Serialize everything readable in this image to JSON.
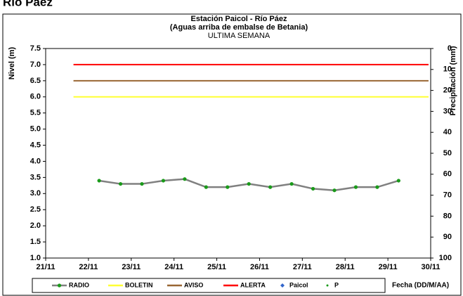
{
  "page_title": "Río Páez",
  "chart_data": {
    "type": "line",
    "title": "Estación Paicol - Río Páez",
    "subtitle": "(Aguas arriba de embalse de Betania)",
    "period": "ULTIMA SEMANA",
    "y_label": "Nivel (m)",
    "y2_label": "Precipitación (mm)",
    "x_label": "Fecha (DD/M/AA)",
    "xlim": [
      21,
      30
    ],
    "xticks": [
      {
        "value": 21,
        "label": "21/11"
      },
      {
        "value": 22,
        "label": "22/11"
      },
      {
        "value": 23,
        "label": "23/11"
      },
      {
        "value": 24,
        "label": "24/11"
      },
      {
        "value": 25,
        "label": "25/11"
      },
      {
        "value": 26,
        "label": "26/11"
      },
      {
        "value": 27,
        "label": "27/11"
      },
      {
        "value": 28,
        "label": "28/11"
      },
      {
        "value": 29,
        "label": "29/11"
      },
      {
        "value": 30,
        "label": "30/11"
      }
    ],
    "ylim": [
      1,
      7.5
    ],
    "yticks": [
      {
        "value": 1,
        "label": "1.0"
      },
      1.5,
      {
        "value": 2,
        "label": "2.0"
      },
      2.5,
      {
        "value": 3,
        "label": "3.0"
      },
      3.5,
      {
        "value": 4,
        "label": "4.0"
      },
      4.5,
      {
        "value": 5,
        "label": "5.0"
      },
      5.5,
      {
        "value": 6,
        "label": "6.0"
      },
      6.5,
      {
        "value": 7,
        "label": "7.0"
      },
      7.5
    ],
    "y2lim": [
      0,
      100
    ],
    "y2_reversed": true,
    "y2ticks": [
      0,
      10,
      20,
      30,
      40,
      50,
      60,
      70,
      80,
      90,
      100
    ],
    "series": [
      {
        "name": "RADIO",
        "color": "#808080",
        "marker": "circle",
        "marker_color": "#1a9a1a",
        "x": [
          22.25,
          22.75,
          23.25,
          23.75,
          24.25,
          24.75,
          25.25,
          25.75,
          26.25,
          26.75,
          27.25,
          27.75,
          28.25,
          28.75,
          29.25
        ],
        "values": [
          3.4,
          3.3,
          3.3,
          3.4,
          3.45,
          3.2,
          3.2,
          3.3,
          3.2,
          3.3,
          3.15,
          3.1,
          3.2,
          3.2,
          3.4
        ]
      },
      {
        "name": "BOLETIN",
        "color": "#ffff33",
        "x": [
          21.65,
          29.95
        ],
        "values": [
          6,
          6
        ]
      },
      {
        "name": "AVISO",
        "color": "#996633",
        "x": [
          21.65,
          29.95
        ],
        "values": [
          6.5,
          6.5
        ]
      },
      {
        "name": "ALERTA",
        "color": "#ff0000",
        "x": [
          21.65,
          29.95
        ],
        "values": [
          7,
          7
        ]
      },
      {
        "name": "Paicol",
        "color": "#3366cc",
        "marker": "diamond",
        "x": [],
        "values": []
      },
      {
        "name": "P",
        "color": "#1a9a1a",
        "marker": "dot",
        "axis": "y2",
        "x": [],
        "values": []
      }
    ]
  }
}
